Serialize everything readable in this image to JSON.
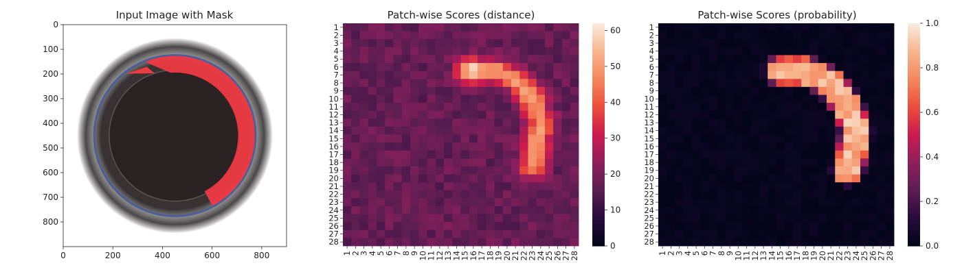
{
  "colors": {
    "magma_stops": [
      "#03051a",
      "#2b0b3f",
      "#5c1e51",
      "#8f1f5e",
      "#cb1b4f",
      "#ec4e3b",
      "#f4875e",
      "#f6b48d",
      "#faebdd"
    ],
    "mask_red": "#ee3a43",
    "jar_rim": "#3d3a3b",
    "jar_inner": "#2b2223",
    "jar_blue_ring": "#4a5f9a"
  },
  "chart_data": [
    {
      "type": "image",
      "title": "Input Image with Mask",
      "xlim": [
        0,
        900
      ],
      "ylim": [
        900,
        0
      ],
      "xticks": [
        0,
        200,
        400,
        600,
        800
      ],
      "yticks": [
        0,
        100,
        200,
        300,
        400,
        500,
        600,
        700,
        800
      ],
      "image_content": {
        "jar_center": [
          450,
          450
        ],
        "jar_outer_radius": 395,
        "blue_ring_radius": 325,
        "inner_dark_radius": 265,
        "mask_region": "red crescent along upper-right inner rim from about angle -115 deg to +65 deg"
      }
    },
    {
      "type": "heatmap",
      "title": "Patch-wise Scores (distance)",
      "rows": 28,
      "cols": 28,
      "row_labels": [
        "1",
        "2",
        "3",
        "4",
        "5",
        "6",
        "7",
        "8",
        "9",
        "10",
        "11",
        "12",
        "13",
        "14",
        "15",
        "16",
        "17",
        "18",
        "19",
        "20",
        "21",
        "22",
        "23",
        "24",
        "25",
        "26",
        "27",
        "28"
      ],
      "col_labels": [
        "1",
        "2",
        "3",
        "4",
        "5",
        "6",
        "7",
        "8",
        "9",
        "10",
        "11",
        "12",
        "13",
        "14",
        "15",
        "16",
        "17",
        "18",
        "19",
        "20",
        "21",
        "22",
        "23",
        "24",
        "25",
        "26",
        "27",
        "28"
      ],
      "vmin": 0,
      "vmax": 62,
      "colorbar_ticks": [
        0,
        10,
        20,
        30,
        40,
        50,
        60
      ],
      "background_value": 17,
      "anomaly_peak": 62,
      "anomaly_path": [
        [
          6.5,
          15.5
        ],
        [
          6.5,
          18.5
        ],
        [
          7.5,
          21.0
        ],
        [
          10.0,
          23.0
        ],
        [
          13.0,
          24.0
        ],
        [
          16.0,
          23.5
        ],
        [
          18.5,
          23.0
        ]
      ]
    },
    {
      "type": "heatmap",
      "title": "Patch-wise Scores (probability)",
      "rows": 28,
      "cols": 28,
      "row_labels": [
        "1",
        "2",
        "3",
        "4",
        "5",
        "6",
        "7",
        "8",
        "9",
        "10",
        "11",
        "12",
        "13",
        "14",
        "15",
        "16",
        "17",
        "18",
        "19",
        "20",
        "21",
        "22",
        "23",
        "24",
        "25",
        "26",
        "27",
        "28"
      ],
      "col_labels": [
        "1",
        "2",
        "3",
        "4",
        "5",
        "6",
        "7",
        "8",
        "9",
        "10",
        "11",
        "12",
        "13",
        "14",
        "15",
        "16",
        "17",
        "18",
        "19",
        "20",
        "21",
        "22",
        "23",
        "24",
        "25",
        "26",
        "27",
        "28"
      ],
      "vmin": 0.0,
      "vmax": 1.0,
      "colorbar_ticks": [
        0.0,
        0.2,
        0.4,
        0.6,
        0.8,
        1.0
      ],
      "colorbar_tick_labels": [
        "0.0",
        "0.2",
        "0.4",
        "0.6",
        "0.8",
        "1.0"
      ],
      "background_value": 0.0,
      "anomaly_peak": 0.95,
      "anomaly_path": [
        [
          6.5,
          15.0
        ],
        [
          6.5,
          18.0
        ],
        [
          8.0,
          21.0
        ],
        [
          11.0,
          23.0
        ],
        [
          14.0,
          24.0
        ],
        [
          17.0,
          23.5
        ],
        [
          19.0,
          23.0
        ]
      ]
    }
  ]
}
